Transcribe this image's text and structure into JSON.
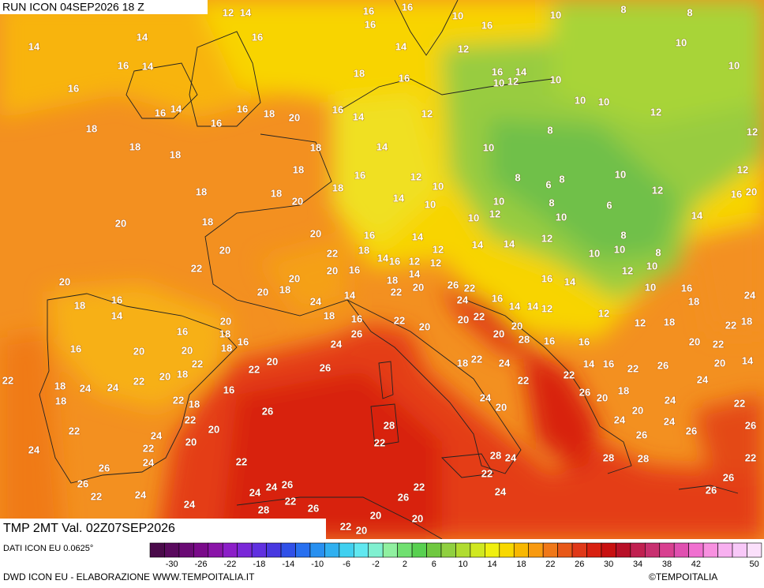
{
  "header": {
    "run": "RUN ICON 04SEP2026 18 Z",
    "field": "TMP 2MT Val. 02Z07SEP2026"
  },
  "footer": {
    "source": "DATI ICON EU 0.0625°",
    "credit": "DWD ICON EU - ELABORAZIONE WWW.TEMPOITALIA.IT",
    "copyright": "©TEMPOITALIA"
  },
  "map_labels": [
    12,
    14,
    16,
    16,
    10,
    16,
    10,
    8,
    8,
    14,
    14,
    16,
    16,
    14,
    12,
    16,
    14,
    18,
    16,
    16,
    14,
    10,
    12,
    10,
    10,
    10,
    16,
    16,
    14,
    16,
    18,
    20,
    16,
    14,
    12,
    10,
    10,
    12,
    18,
    16,
    8,
    18,
    18,
    14,
    10,
    12,
    18,
    18,
    16,
    12,
    10,
    8,
    6,
    8,
    10,
    12,
    18,
    18,
    20,
    18,
    14,
    10,
    10,
    8,
    6,
    12,
    16,
    20,
    20,
    18,
    20,
    16,
    14,
    10,
    12,
    10,
    14,
    20,
    22,
    18,
    14,
    16,
    12,
    12,
    14,
    14,
    12,
    10,
    10,
    8,
    8,
    22,
    20,
    20,
    20,
    16,
    18,
    14,
    12,
    16,
    14,
    12,
    10,
    18,
    16,
    14,
    20,
    18,
    24,
    14,
    22,
    20,
    26,
    22,
    24,
    16,
    14,
    14,
    12,
    12,
    10,
    16,
    18,
    24,
    16,
    20,
    18,
    16,
    18,
    16,
    22,
    20,
    20,
    22,
    20,
    20,
    28,
    16,
    16,
    12,
    18,
    22,
    18,
    16,
    20,
    20,
    18,
    24,
    26,
    22,
    18,
    24,
    22,
    20,
    18,
    22,
    22,
    20,
    26,
    18,
    22,
    24,
    22,
    14,
    16,
    22,
    26,
    24,
    14,
    20,
    22,
    20,
    18,
    24,
    22,
    18,
    16,
    24,
    20,
    22,
    26,
    20,
    18,
    20,
    24,
    22,
    22,
    24,
    22,
    20,
    26,
    28,
    22,
    24,
    26,
    24,
    26,
    26,
    24,
    22,
    24,
    20,
    22,
    28,
    24,
    28,
    28,
    22,
    26,
    26,
    22,
    24,
    24,
    24,
    24,
    26,
    28,
    22,
    22,
    22,
    26,
    24,
    26,
    26,
    26,
    20,
    22,
    20,
    20,
    28
  ],
  "scale": {
    "ticks": [
      -30,
      -26,
      -22,
      -18,
      -14,
      -10,
      -6,
      -2,
      2,
      6,
      10,
      14,
      18,
      22,
      26,
      30,
      34,
      38,
      42,
      50
    ],
    "colors": [
      "#4a0a4a",
      "#5a0a5e",
      "#6a0a74",
      "#7a0a8a",
      "#8a14a8",
      "#8c1ec8",
      "#7a28d8",
      "#6030e0",
      "#4838e0",
      "#3050e8",
      "#2870f0",
      "#2890f0",
      "#30b0f0",
      "#40d0f0",
      "#60e8f0",
      "#80f0d0",
      "#90f0a0",
      "#70e070",
      "#58d050",
      "#70c840",
      "#90d040",
      "#b0dc30",
      "#d0e820",
      "#f0f010",
      "#f8d800",
      "#f8b800",
      "#f89a10",
      "#f07818",
      "#e85818",
      "#e03818",
      "#d82010",
      "#c81010",
      "#b81028",
      "#c02050",
      "#c83070",
      "#d84090",
      "#e050b0",
      "#f070d0",
      "#f890e0",
      "#f8b0f0",
      "#f8c8f8",
      "#fbe0fb"
    ]
  }
}
